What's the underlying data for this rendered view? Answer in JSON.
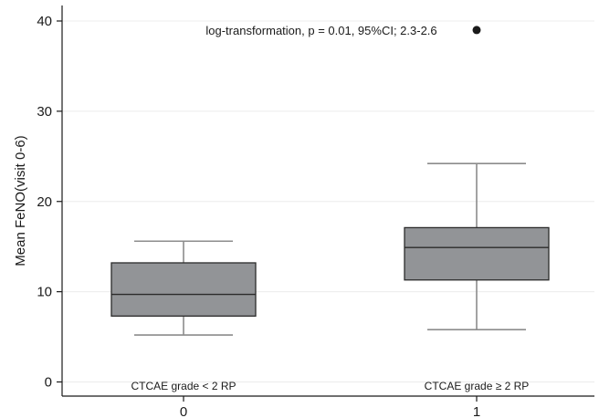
{
  "chart_data": {
    "type": "box",
    "title": "",
    "xlabel": "",
    "ylabel": "Mean FeNO(visit 0-6)",
    "ylim": [
      -1.5,
      41
    ],
    "yticks": [
      0,
      10,
      20,
      30,
      40
    ],
    "grid": true,
    "annotation": "log-transformation, p = 0.01, 95%CI; 2.3-2.6",
    "categories": [
      "0",
      "1"
    ],
    "boxes": [
      {
        "category": "0",
        "label": "CTCAE grade < 2 RP",
        "min": 5.2,
        "q1": 7.3,
        "median": 9.7,
        "q3": 13.2,
        "max": 15.6,
        "outliers": []
      },
      {
        "category": "1",
        "label": "CTCAE grade ≥ 2 RP",
        "min": 5.8,
        "q1": 11.3,
        "median": 14.9,
        "q3": 17.1,
        "max": 24.2,
        "outliers": [
          39
        ]
      }
    ],
    "box_color": "#929497",
    "whisker_color": "#8c8c8c"
  }
}
